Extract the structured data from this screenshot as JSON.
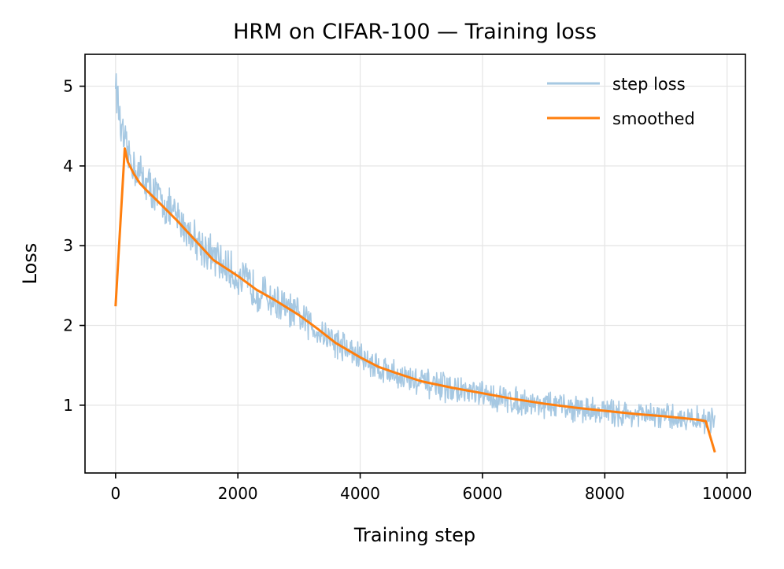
{
  "chart_data": {
    "type": "line",
    "title": "HRM on CIFAR-100 — Training loss",
    "xlabel": "Training step",
    "ylabel": "Loss",
    "xlim": [
      -500,
      10300
    ],
    "ylim": [
      0.15,
      5.4
    ],
    "xticks": [
      0,
      2000,
      4000,
      6000,
      8000,
      10000
    ],
    "xtick_labels": [
      "0",
      "2000",
      "4000",
      "6000",
      "8000",
      "10000"
    ],
    "yticks": [
      1,
      2,
      3,
      4,
      5
    ],
    "ytick_labels": [
      "1",
      "2",
      "3",
      "4",
      "5"
    ],
    "grid": true,
    "legend": {
      "position": "top-right",
      "entries": [
        {
          "label": "step loss",
          "color": "#a6c8e2"
        },
        {
          "label": "smoothed",
          "color": "#ff7f0e"
        }
      ]
    },
    "series": [
      {
        "name": "step loss",
        "color": "#a6c8e2",
        "x": [
          0,
          50,
          100,
          150,
          200,
          300,
          400,
          500,
          700,
          1000,
          1300,
          1600,
          2000,
          2300,
          2600,
          3000,
          3300,
          3600,
          4000,
          4300,
          4600,
          5000,
          5500,
          6000,
          6500,
          7000,
          7500,
          8000,
          8500,
          9000,
          9500,
          9800
        ],
        "values": [
          5.1,
          4.7,
          4.4,
          4.25,
          4.15,
          4.0,
          3.9,
          3.8,
          3.6,
          3.35,
          3.1,
          2.85,
          2.6,
          2.45,
          2.3,
          2.1,
          1.95,
          1.8,
          1.6,
          1.48,
          1.38,
          1.28,
          1.2,
          1.12,
          1.06,
          1.01,
          0.96,
          0.92,
          0.88,
          0.85,
          0.82,
          0.8
        ],
        "noise_amplitude": 0.22
      },
      {
        "name": "smoothed",
        "color": "#ff7f0e",
        "x": [
          0,
          150,
          200,
          300,
          400,
          500,
          700,
          1000,
          1300,
          1600,
          2000,
          2300,
          2600,
          3000,
          3300,
          3600,
          4000,
          4300,
          4600,
          5000,
          5500,
          6000,
          6500,
          7000,
          7500,
          8000,
          8500,
          9000,
          9500,
          9650,
          9800
        ],
        "values": [
          2.24,
          4.22,
          4.05,
          3.9,
          3.78,
          3.7,
          3.55,
          3.32,
          3.07,
          2.82,
          2.62,
          2.45,
          2.32,
          2.13,
          1.96,
          1.78,
          1.6,
          1.48,
          1.4,
          1.3,
          1.22,
          1.15,
          1.08,
          1.02,
          0.97,
          0.93,
          0.89,
          0.86,
          0.82,
          0.8,
          0.41
        ]
      }
    ]
  }
}
